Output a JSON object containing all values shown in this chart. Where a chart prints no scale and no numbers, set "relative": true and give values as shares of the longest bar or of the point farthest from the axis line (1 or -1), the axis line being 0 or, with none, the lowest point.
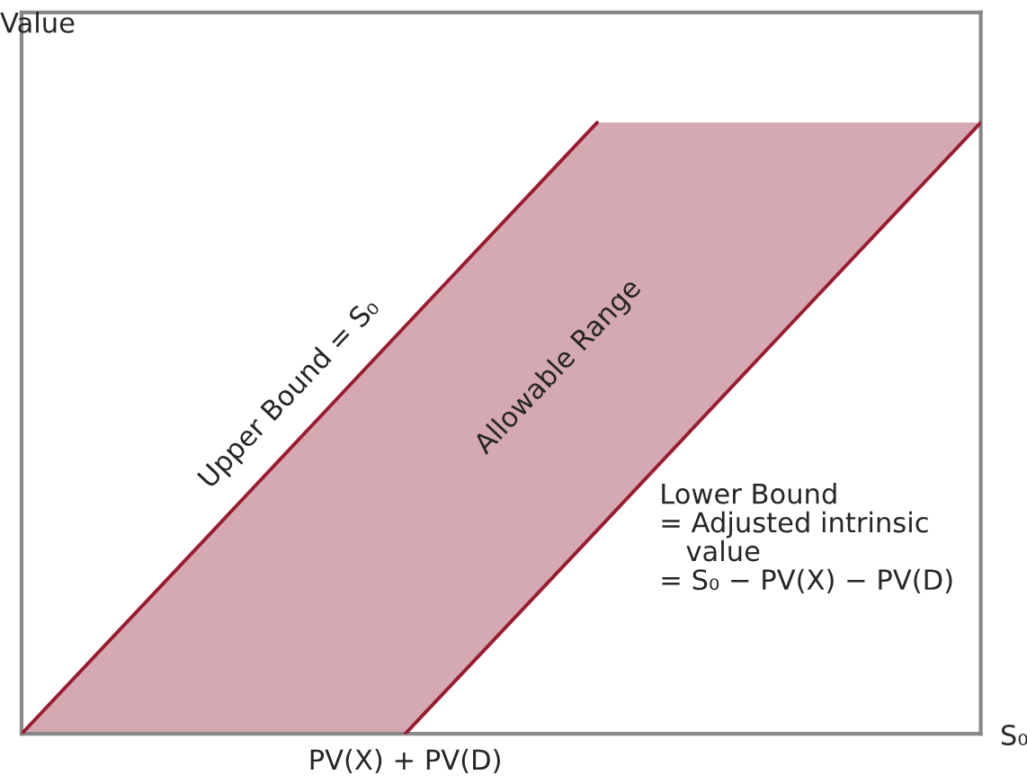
{
  "chart_data": {
    "type": "line",
    "relative": true,
    "ylabel": "Value",
    "xlabel": "S₀",
    "categories": [
      null,
      null,
      null,
      null,
      null,
      null
    ],
    "series": [
      {
        "color": "#9b1b30",
        "values": [
          0,
          0.333,
          0.667,
          1,
          null,
          null
        ]
      },
      {
        "color": "#9b1b30",
        "values": [
          null,
          null,
          0,
          0.333,
          0.667,
          1
        ],
        "lower": [
          0,
          0,
          0,
          0.333,
          0.667,
          1
        ],
        "upper": [
          0,
          0.333,
          0.667,
          1,
          1,
          1
        ]
      }
    ],
    "annotations": [
      "Upper Bound = S₀",
      "Allowable Range",
      "PV(X) + PV(D)",
      "Lower Bound\n= Adjusted intrinsic\n   value\n= S₀ − PV(X) − PV(D)"
    ]
  }
}
